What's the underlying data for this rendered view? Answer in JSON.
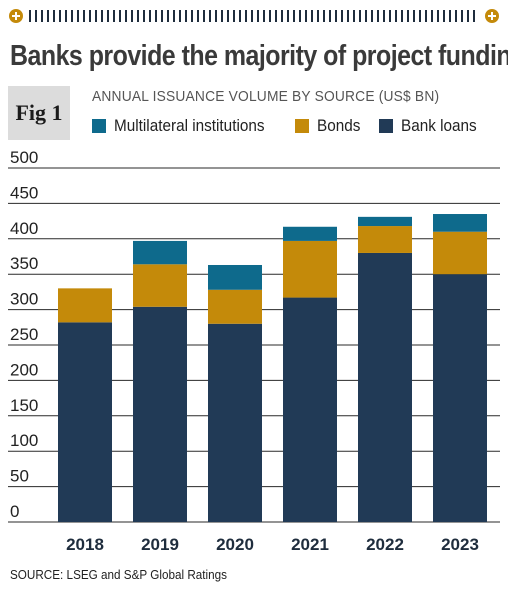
{
  "header": {
    "title": "Banks provide the majority of project funding",
    "fig_label": "Fig 1",
    "subtitle": "ANNUAL ISSUANCE VOLUME BY SOURCE (US$ BN)",
    "source": "SOURCE: LSEG and S&P Global Ratings"
  },
  "legend": [
    {
      "label": "Multilateral institutions",
      "color": "#0e6a8c"
    },
    {
      "label": "Bonds",
      "color": "#c48a0a"
    },
    {
      "label": "Bank loans",
      "color": "#213a56"
    }
  ],
  "chart_data": {
    "type": "bar",
    "stacked": true,
    "title": "Banks provide the majority of project funding",
    "subtitle": "ANNUAL ISSUANCE VOLUME BY SOURCE (US$ BN)",
    "categories": [
      "2018",
      "2019",
      "2020",
      "2021",
      "2022",
      "2023"
    ],
    "series": [
      {
        "name": "Bank loans",
        "color": "#213a56",
        "values": [
          282,
          304,
          280,
          317,
          380,
          350
        ]
      },
      {
        "name": "Bonds",
        "color": "#c48a0a",
        "values": [
          48,
          60,
          48,
          80,
          38,
          60
        ]
      },
      {
        "name": "Multilateral institutions",
        "color": "#0e6a8c",
        "values": [
          0,
          33,
          35,
          20,
          13,
          25
        ]
      }
    ],
    "ylim": [
      0,
      500
    ],
    "yticks": [
      0,
      50,
      100,
      150,
      200,
      250,
      300,
      350,
      400,
      450,
      500
    ],
    "grid": true,
    "legend_position": "top"
  },
  "colors": {
    "accent_gold": "#c48a0a",
    "navy": "#213a56",
    "teal": "#0e6a8c",
    "grid": "#2a2a2a"
  }
}
